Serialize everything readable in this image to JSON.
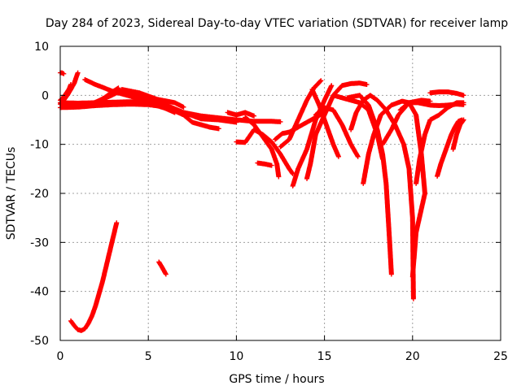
{
  "chart_data": {
    "type": "scatter",
    "title": "Day 284 of 2023, Sidereal Day-to-day VTEC variation (SDTVAR) for receiver lamp",
    "xlabel": "GPS time / hours",
    "ylabel": "SDTVAR / TECUs",
    "xlim": [
      0,
      25
    ],
    "ylim": [
      -50,
      10
    ],
    "grid": true,
    "legend": "none",
    "x_ticks": [
      0,
      5,
      10,
      15,
      20,
      25
    ],
    "y_ticks": [
      -50,
      -40,
      -30,
      -20,
      -10,
      0,
      10
    ],
    "x_tick_labels": [
      "0",
      "5",
      "10",
      "15",
      "20",
      "25"
    ],
    "y_tick_labels": [
      "-50",
      "-40",
      "-30",
      "-20",
      "-10",
      "0",
      "10"
    ],
    "marker": "plus",
    "color": "#ff0000",
    "series": [
      {
        "name": "baseline-lower",
        "points": [
          [
            0,
            -2.5
          ],
          [
            1,
            -2.4
          ],
          [
            2,
            -2.1
          ],
          [
            3,
            -1.9
          ],
          [
            4,
            -1.8
          ],
          [
            5,
            -1.9
          ],
          [
            6,
            -2.4
          ],
          [
            7,
            -4
          ],
          [
            7.5,
            -5.5
          ],
          [
            8.5,
            -6.5
          ],
          [
            9,
            -6.8
          ]
        ]
      },
      {
        "name": "baseline-upper",
        "points": [
          [
            0,
            -1.5
          ],
          [
            1,
            -1.6
          ],
          [
            2,
            -1.5
          ],
          [
            3,
            -1.4
          ],
          [
            4,
            -1.3
          ],
          [
            5,
            -1.6
          ],
          [
            6,
            -2
          ],
          [
            7,
            -3.5
          ],
          [
            8,
            -4.8
          ],
          [
            9,
            -5
          ],
          [
            10,
            -5.5
          ]
        ]
      },
      {
        "name": "early-rise-a",
        "points": [
          [
            0,
            -1.8
          ],
          [
            0.2,
            -1
          ],
          [
            0.4,
            0
          ],
          [
            0.6,
            1.2
          ],
          [
            0.8,
            2.5
          ],
          [
            0.9,
            3.6
          ],
          [
            1,
            4.6
          ]
        ]
      },
      {
        "name": "early-rise-b",
        "points": [
          [
            0,
            -1
          ],
          [
            0.15,
            -0.5
          ],
          [
            0.3,
            0.2
          ],
          [
            0.5,
            1.3
          ],
          [
            0.6,
            2.2
          ]
        ]
      },
      {
        "name": "start-offset",
        "points": [
          [
            0,
            4.6
          ],
          [
            0.1,
            4.6
          ],
          [
            0.2,
            4.4
          ]
        ]
      },
      {
        "name": "arc-c",
        "points": [
          [
            1,
            -2
          ],
          [
            2,
            -1.5
          ],
          [
            2.5,
            -0.5
          ],
          [
            3,
            0.8
          ],
          [
            3.3,
            1.5
          ]
        ]
      },
      {
        "name": "arc-d",
        "points": [
          [
            1.5,
            -2.2
          ],
          [
            2,
            -1.4
          ],
          [
            2.8,
            -0.2
          ],
          [
            3.2,
            0.5
          ]
        ]
      },
      {
        "name": "falling-e",
        "points": [
          [
            1.4,
            3.2
          ],
          [
            2,
            2.2
          ],
          [
            3,
            0.8
          ],
          [
            4,
            -0.2
          ],
          [
            5,
            -1.5
          ],
          [
            6,
            -2.7
          ],
          [
            6.5,
            -3.5
          ]
        ]
      },
      {
        "name": "falling-f",
        "points": [
          [
            2.3,
            -1
          ],
          [
            3,
            0.5
          ],
          [
            3.5,
            1
          ],
          [
            4,
            0.5
          ],
          [
            5,
            -0.8
          ],
          [
            6,
            -2
          ],
          [
            7,
            -3.5
          ],
          [
            8,
            -4.2
          ],
          [
            9,
            -4.6
          ],
          [
            10,
            -5
          ],
          [
            11,
            -5.3
          ],
          [
            12,
            -5.3
          ],
          [
            12.5,
            -5.4
          ]
        ]
      },
      {
        "name": "falling-g",
        "points": [
          [
            3.5,
            1.2
          ],
          [
            4.5,
            0.5
          ],
          [
            5.5,
            -0.8
          ],
          [
            6.5,
            -1.5
          ],
          [
            7,
            -2.4
          ]
        ]
      },
      {
        "name": "low-arc-h",
        "points": [
          [
            0.6,
            -46
          ],
          [
            0.8,
            -47
          ],
          [
            1,
            -47.8
          ],
          [
            1.2,
            -48
          ],
          [
            1.4,
            -47.6
          ],
          [
            1.6,
            -46.5
          ],
          [
            1.8,
            -45
          ],
          [
            2,
            -43
          ],
          [
            2.2,
            -40.5
          ],
          [
            2.4,
            -38
          ],
          [
            2.6,
            -35
          ],
          [
            2.8,
            -32
          ],
          [
            3,
            -29
          ],
          [
            3.2,
            -26
          ]
        ]
      },
      {
        "name": "segment-i",
        "points": [
          [
            5.6,
            -34
          ],
          [
            5.8,
            -35.2
          ],
          [
            6,
            -36.5
          ]
        ]
      },
      {
        "name": "segment-j",
        "points": [
          [
            9.5,
            -3.5
          ],
          [
            10,
            -4
          ],
          [
            10.5,
            -3.5
          ],
          [
            11,
            -4.2
          ]
        ]
      },
      {
        "name": "dip-k",
        "points": [
          [
            10,
            -9.5
          ],
          [
            10.5,
            -9.6
          ],
          [
            11,
            -7
          ],
          [
            11.5,
            -8
          ],
          [
            12,
            -9.5
          ],
          [
            12.5,
            -12
          ],
          [
            13,
            -15
          ],
          [
            13.2,
            -16
          ]
        ]
      },
      {
        "name": "dip-l",
        "points": [
          [
            10.5,
            -4.5
          ],
          [
            11,
            -6
          ],
          [
            11.5,
            -8.5
          ],
          [
            12,
            -11
          ],
          [
            12.3,
            -14
          ],
          [
            12.4,
            -16.6
          ]
        ]
      },
      {
        "name": "dip-m",
        "points": [
          [
            11.2,
            -13.8
          ],
          [
            11.6,
            -14
          ],
          [
            12,
            -14.3
          ]
        ]
      },
      {
        "name": "rise-n",
        "points": [
          [
            12.2,
            -9
          ],
          [
            12.6,
            -7.8
          ],
          [
            13,
            -7.5
          ],
          [
            13.5,
            -6.5
          ],
          [
            14,
            -5.5
          ],
          [
            14.5,
            -4.5
          ],
          [
            15,
            -3.5
          ]
        ]
      },
      {
        "name": "rise-o",
        "points": [
          [
            12.5,
            -10.5
          ],
          [
            13,
            -9
          ],
          [
            13.5,
            -5
          ],
          [
            14,
            -1
          ],
          [
            14.4,
            1.5
          ],
          [
            14.8,
            3
          ]
        ]
      },
      {
        "name": "rise-p",
        "points": [
          [
            13.2,
            -18.5
          ],
          [
            13.5,
            -15
          ],
          [
            14,
            -11
          ],
          [
            14.5,
            -5
          ],
          [
            15,
            -1
          ],
          [
            15.4,
            2
          ]
        ]
      },
      {
        "name": "rise-q",
        "points": [
          [
            14,
            -17
          ],
          [
            14.2,
            -14
          ],
          [
            14.5,
            -8
          ],
          [
            15,
            -4
          ],
          [
            15.5,
            0
          ],
          [
            16,
            2
          ],
          [
            16.5,
            2.4
          ],
          [
            17,
            2.5
          ],
          [
            17.4,
            2.2
          ]
        ]
      },
      {
        "name": "fall-r",
        "points": [
          [
            14.5,
            -4
          ],
          [
            15,
            -2.5
          ],
          [
            15.5,
            -3
          ],
          [
            16,
            -6
          ],
          [
            16.5,
            -10
          ],
          [
            16.9,
            -12.5
          ]
        ]
      },
      {
        "name": "fall-s",
        "points": [
          [
            14.3,
            1.2
          ],
          [
            14.7,
            -2
          ],
          [
            15.1,
            -6
          ],
          [
            15.5,
            -10
          ],
          [
            15.8,
            -12.5
          ]
        ]
      },
      {
        "name": "arc-t",
        "points": [
          [
            16.3,
            -0.5
          ],
          [
            17,
            0
          ],
          [
            17.5,
            -2
          ],
          [
            18,
            -7
          ],
          [
            18.3,
            -12
          ],
          [
            18.5,
            -18
          ],
          [
            18.6,
            -24
          ],
          [
            18.7,
            -30
          ],
          [
            18.8,
            -36.5
          ]
        ]
      },
      {
        "name": "arc-u",
        "points": [
          [
            15.5,
            0
          ],
          [
            16,
            -0.5
          ],
          [
            16.5,
            -1
          ],
          [
            17,
            -1.5
          ],
          [
            17.5,
            -3
          ],
          [
            18,
            -8
          ],
          [
            18.3,
            -13
          ]
        ]
      },
      {
        "name": "arc-v",
        "points": [
          [
            16.5,
            -7
          ],
          [
            16.8,
            -3.5
          ],
          [
            17.2,
            -1
          ],
          [
            17.6,
            0
          ],
          [
            18,
            -1
          ],
          [
            18.5,
            -3
          ],
          [
            19,
            -6
          ],
          [
            19.5,
            -10
          ],
          [
            19.8,
            -15
          ],
          [
            20,
            -25
          ],
          [
            20.05,
            -41.5
          ]
        ]
      },
      {
        "name": "arc-w",
        "points": [
          [
            17.2,
            -18
          ],
          [
            17.5,
            -12
          ],
          [
            17.8,
            -8
          ],
          [
            18.2,
            -4
          ],
          [
            18.8,
            -2
          ],
          [
            19.4,
            -1.2
          ],
          [
            19.8,
            -1.5
          ],
          [
            20.2,
            -4
          ],
          [
            20.5,
            -12
          ],
          [
            20.7,
            -20
          ],
          [
            20.2,
            -28
          ],
          [
            20.0,
            -37
          ]
        ]
      },
      {
        "name": "arc-x",
        "points": [
          [
            18.3,
            -10
          ],
          [
            18.8,
            -7
          ],
          [
            19.2,
            -4
          ],
          [
            19.8,
            -1.5
          ],
          [
            20.5,
            -1
          ],
          [
            21,
            -1.2
          ]
        ]
      },
      {
        "name": "rise-y",
        "points": [
          [
            20.2,
            -18
          ],
          [
            20.4,
            -13
          ],
          [
            20.7,
            -8
          ],
          [
            21,
            -5
          ],
          [
            21.5,
            -4
          ],
          [
            22,
            -2.5
          ],
          [
            22.5,
            -1.5
          ],
          [
            22.9,
            -1.5
          ]
        ]
      },
      {
        "name": "rise-z",
        "points": [
          [
            19.3,
            -3
          ],
          [
            19.8,
            -1.5
          ],
          [
            20.3,
            -1.5
          ],
          [
            21,
            -2
          ],
          [
            21.5,
            -2.1
          ],
          [
            22,
            -2
          ],
          [
            22.5,
            -1.8
          ],
          [
            22.9,
            -1.9
          ]
        ]
      },
      {
        "name": "top-aa",
        "points": [
          [
            21,
            0.5
          ],
          [
            21.5,
            0.7
          ],
          [
            22,
            0.7
          ],
          [
            22.5,
            0.4
          ],
          [
            22.9,
            0
          ]
        ]
      },
      {
        "name": "end-bb",
        "points": [
          [
            21.4,
            -16.5
          ],
          [
            21.6,
            -14
          ],
          [
            21.8,
            -12
          ],
          [
            22,
            -10
          ],
          [
            22.2,
            -8
          ],
          [
            22.4,
            -6.5
          ],
          [
            22.6,
            -5.3
          ],
          [
            22.8,
            -5
          ]
        ]
      },
      {
        "name": "end-cc",
        "points": [
          [
            22.3,
            -11
          ],
          [
            22.5,
            -8
          ],
          [
            22.7,
            -6
          ],
          [
            22.9,
            -5
          ]
        ]
      }
    ]
  }
}
